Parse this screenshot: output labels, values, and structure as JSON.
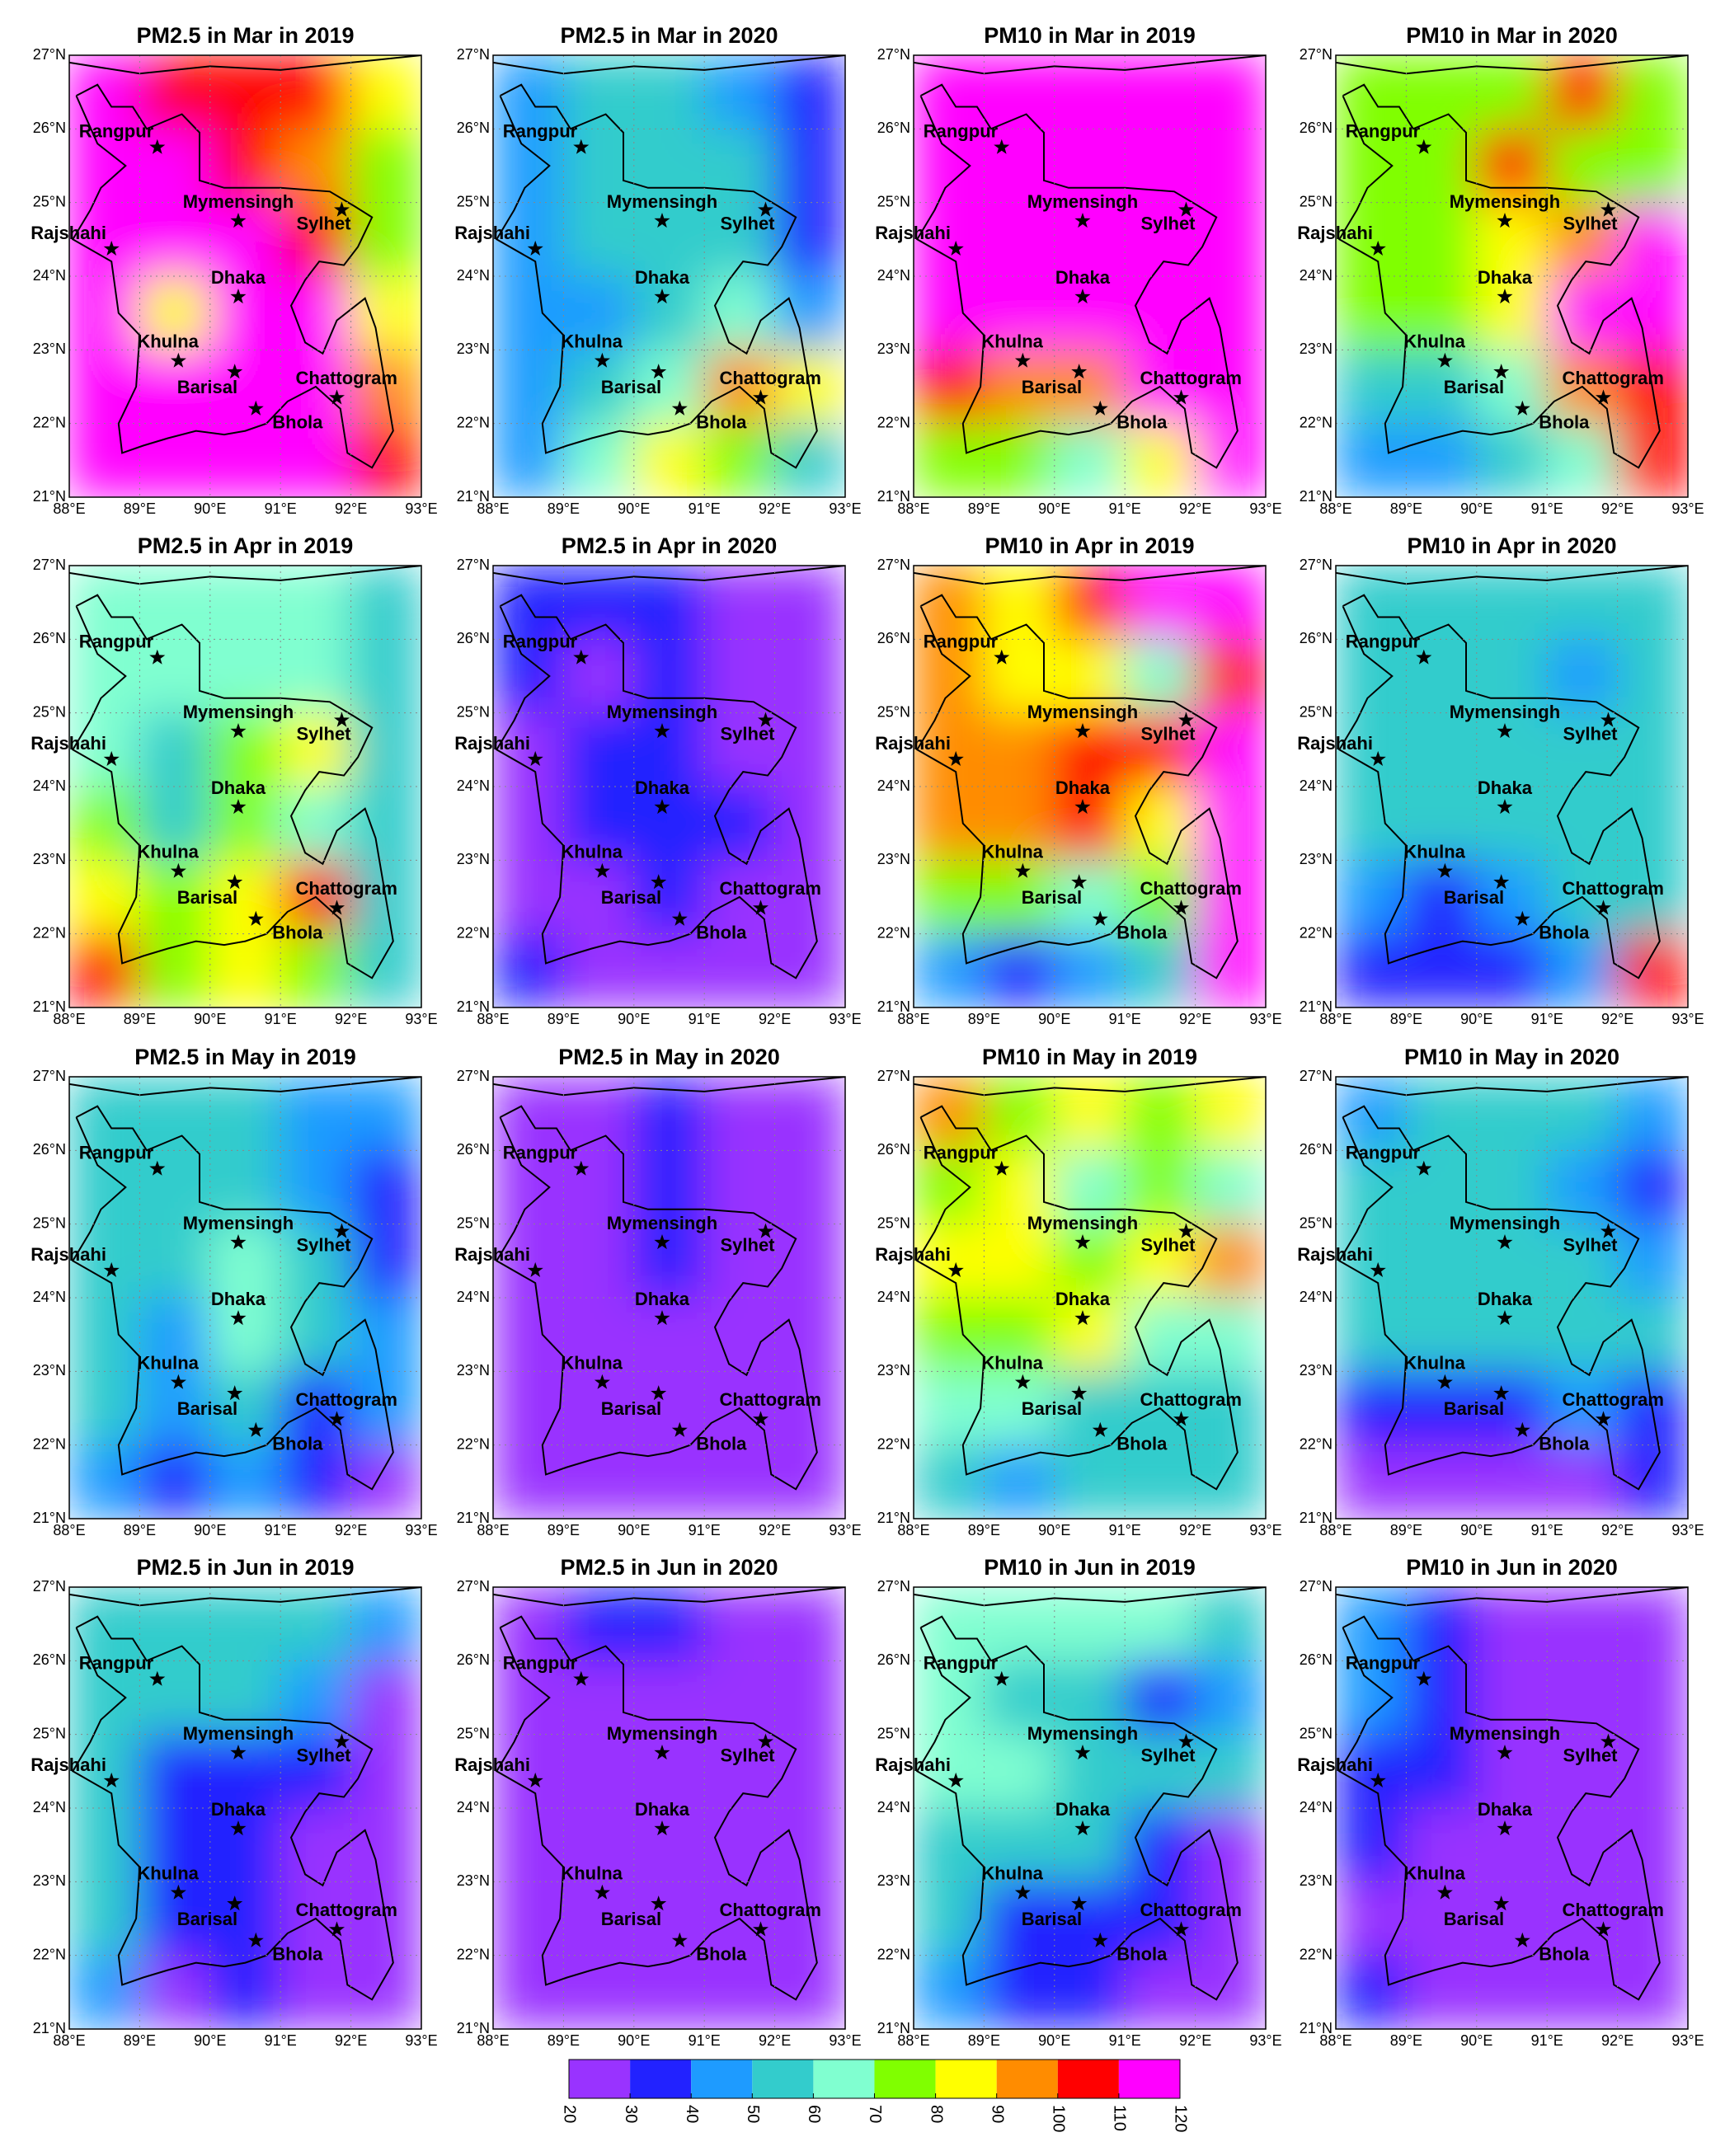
{
  "axes": {
    "xlim": [
      88,
      93
    ],
    "ylim": [
      21,
      27
    ],
    "xticks": [
      {
        "value": 88,
        "label": "88°E"
      },
      {
        "value": 89,
        "label": "89°E"
      },
      {
        "value": 90,
        "label": "90°E"
      },
      {
        "value": 91,
        "label": "91°E"
      },
      {
        "value": 92,
        "label": "92°E"
      },
      {
        "value": 93,
        "label": "93°E"
      }
    ],
    "yticks": [
      {
        "value": 21,
        "label": "21°N"
      },
      {
        "value": 22,
        "label": "22°N"
      },
      {
        "value": 23,
        "label": "23°N"
      },
      {
        "value": 24,
        "label": "24°N"
      },
      {
        "value": 25,
        "label": "25°N"
      },
      {
        "value": 26,
        "label": "26°N"
      },
      {
        "value": 27,
        "label": "27°N"
      }
    ],
    "grid": true
  },
  "cities": [
    {
      "name": "Rangpur",
      "lon": 89.25,
      "lat": 25.75
    },
    {
      "name": "Rajshahi",
      "lon": 88.6,
      "lat": 24.37
    },
    {
      "name": "Mymensingh",
      "lon": 90.4,
      "lat": 24.75
    },
    {
      "name": "Sylhet",
      "lon": 91.87,
      "lat": 24.9
    },
    {
      "name": "Dhaka",
      "lon": 90.4,
      "lat": 23.72
    },
    {
      "name": "Khulna",
      "lon": 89.55,
      "lat": 22.85
    },
    {
      "name": "Barisal",
      "lon": 90.35,
      "lat": 22.7
    },
    {
      "name": "Chattogram",
      "lon": 91.8,
      "lat": 22.35
    },
    {
      "name": "Bhola",
      "lon": 90.65,
      "lat": 22.2
    }
  ],
  "colorbar": {
    "ticks": [
      20,
      30,
      40,
      50,
      60,
      70,
      80,
      90,
      100,
      110,
      120
    ],
    "colors": [
      "#9933ff",
      "#2222ff",
      "#1e9bff",
      "#33cccc",
      "#80ffd0",
      "#80ff00",
      "#ffff00",
      "#ff8c00",
      "#ff0000",
      "#ff00ff"
    ]
  },
  "panels": [
    {
      "title": "PM2.5 in Mar in 2019",
      "grid": [
        [
          115,
          105,
          105,
          100,
          80
        ],
        [
          115,
          115,
          105,
          95,
          70
        ],
        [
          115,
          115,
          115,
          105,
          75
        ],
        [
          115,
          80,
          115,
          110,
          80
        ],
        [
          115,
          115,
          115,
          115,
          95
        ],
        [
          115,
          115,
          115,
          115,
          105
        ]
      ]
    },
    {
      "title": "PM2.5 in Mar in 2020",
      "grid": [
        [
          45,
          55,
          55,
          45,
          35
        ],
        [
          45,
          55,
          55,
          55,
          35
        ],
        [
          45,
          55,
          55,
          55,
          35
        ],
        [
          45,
          40,
          55,
          65,
          45
        ],
        [
          45,
          55,
          65,
          95,
          85
        ],
        [
          45,
          65,
          85,
          75,
          55
        ]
      ]
    },
    {
      "title": "PM10 in Mar in 2019",
      "grid": [
        [
          110,
          115,
          115,
          115,
          115
        ],
        [
          115,
          115,
          115,
          115,
          115
        ],
        [
          115,
          115,
          115,
          115,
          115
        ],
        [
          115,
          115,
          115,
          115,
          115
        ],
        [
          105,
          95,
          95,
          115,
          115
        ],
        [
          75,
          75,
          65,
          85,
          115
        ]
      ]
    },
    {
      "title": "PM10 in Mar in 2020",
      "grid": [
        [
          70,
          75,
          75,
          105,
          75
        ],
        [
          75,
          75,
          105,
          75,
          75
        ],
        [
          75,
          75,
          85,
          95,
          115
        ],
        [
          75,
          75,
          85,
          115,
          115
        ],
        [
          55,
          55,
          65,
          95,
          105
        ],
        [
          45,
          45,
          55,
          65,
          105
        ]
      ]
    },
    {
      "title": "PM2.5 in Apr in 2019",
      "grid": [
        [
          65,
          65,
          65,
          65,
          55
        ],
        [
          65,
          65,
          65,
          65,
          55
        ],
        [
          65,
          55,
          75,
          85,
          55
        ],
        [
          75,
          55,
          75,
          65,
          55
        ],
        [
          85,
          75,
          85,
          105,
          55
        ],
        [
          105,
          75,
          85,
          75,
          55
        ]
      ]
    },
    {
      "title": "PM2.5 in Apr in 2020",
      "grid": [
        [
          35,
          35,
          35,
          25,
          25
        ],
        [
          35,
          25,
          35,
          25,
          25
        ],
        [
          25,
          35,
          35,
          25,
          25
        ],
        [
          25,
          35,
          35,
          35,
          25
        ],
        [
          25,
          25,
          35,
          25,
          25
        ],
        [
          35,
          25,
          25,
          25,
          25
        ]
      ]
    },
    {
      "title": "PM10 in Apr in 2019",
      "grid": [
        [
          95,
          85,
          105,
          115,
          115
        ],
        [
          95,
          85,
          85,
          65,
          105
        ],
        [
          95,
          95,
          105,
          105,
          115
        ],
        [
          95,
          95,
          105,
          85,
          115
        ],
        [
          75,
          75,
          65,
          75,
          115
        ],
        [
          45,
          35,
          45,
          55,
          115
        ]
      ]
    },
    {
      "title": "PM10 in Apr in 2020",
      "grid": [
        [
          55,
          55,
          55,
          55,
          55
        ],
        [
          55,
          55,
          55,
          45,
          55
        ],
        [
          55,
          55,
          55,
          55,
          55
        ],
        [
          55,
          55,
          55,
          55,
          55
        ],
        [
          45,
          35,
          45,
          55,
          55
        ],
        [
          35,
          35,
          35,
          45,
          105
        ]
      ]
    },
    {
      "title": "PM2.5 in May in 2019",
      "grid": [
        [
          55,
          55,
          55,
          45,
          45
        ],
        [
          55,
          55,
          55,
          45,
          35
        ],
        [
          55,
          55,
          65,
          55,
          35
        ],
        [
          55,
          40,
          65,
          55,
          45
        ],
        [
          55,
          40,
          55,
          35,
          45
        ],
        [
          45,
          35,
          45,
          35,
          25
        ]
      ]
    },
    {
      "title": "PM2.5 in May in 2020",
      "grid": [
        [
          25,
          25,
          35,
          25,
          25
        ],
        [
          25,
          25,
          35,
          25,
          25
        ],
        [
          25,
          25,
          35,
          25,
          25
        ],
        [
          25,
          25,
          25,
          25,
          25
        ],
        [
          25,
          25,
          25,
          25,
          25
        ],
        [
          25,
          25,
          25,
          25,
          25
        ]
      ]
    },
    {
      "title": "PM10 in May in 2019",
      "grid": [
        [
          95,
          75,
          85,
          75,
          85
        ],
        [
          75,
          85,
          65,
          75,
          65
        ],
        [
          85,
          85,
          75,
          85,
          95
        ],
        [
          75,
          75,
          85,
          65,
          65
        ],
        [
          65,
          65,
          55,
          55,
          55
        ],
        [
          55,
          45,
          55,
          55,
          55
        ]
      ]
    },
    {
      "title": "PM10 in May in 2020",
      "grid": [
        [
          45,
          55,
          55,
          55,
          45
        ],
        [
          55,
          55,
          55,
          45,
          35
        ],
        [
          55,
          55,
          55,
          55,
          45
        ],
        [
          55,
          55,
          55,
          55,
          55
        ],
        [
          35,
          35,
          35,
          45,
          35
        ],
        [
          25,
          25,
          25,
          25,
          35
        ]
      ]
    },
    {
      "title": "PM2.5 in Jun in 2019",
      "grid": [
        [
          55,
          55,
          55,
          55,
          45
        ],
        [
          55,
          55,
          55,
          45,
          25
        ],
        [
          55,
          35,
          35,
          35,
          25
        ],
        [
          55,
          35,
          35,
          25,
          25
        ],
        [
          55,
          35,
          35,
          25,
          25
        ],
        [
          45,
          25,
          35,
          25,
          25
        ]
      ]
    },
    {
      "title": "PM2.5 in Jun in 2020",
      "grid": [
        [
          25,
          35,
          35,
          25,
          25
        ],
        [
          25,
          25,
          25,
          25,
          25
        ],
        [
          25,
          25,
          25,
          25,
          25
        ],
        [
          25,
          25,
          25,
          25,
          25
        ],
        [
          25,
          25,
          25,
          25,
          25
        ],
        [
          25,
          25,
          25,
          25,
          25
        ]
      ]
    },
    {
      "title": "PM10 in Jun in 2019",
      "grid": [
        [
          65,
          65,
          65,
          65,
          55
        ],
        [
          65,
          55,
          55,
          35,
          45
        ],
        [
          65,
          65,
          55,
          55,
          55
        ],
        [
          55,
          55,
          55,
          35,
          25
        ],
        [
          55,
          35,
          35,
          35,
          25
        ],
        [
          45,
          35,
          35,
          25,
          25
        ]
      ]
    },
    {
      "title": "PM10 in Jun in 2020",
      "grid": [
        [
          45,
          35,
          25,
          25,
          25
        ],
        [
          45,
          35,
          25,
          25,
          25
        ],
        [
          35,
          35,
          25,
          25,
          25
        ],
        [
          35,
          25,
          25,
          25,
          25
        ],
        [
          25,
          25,
          25,
          25,
          25
        ],
        [
          35,
          25,
          25,
          25,
          25
        ]
      ]
    }
  ]
}
